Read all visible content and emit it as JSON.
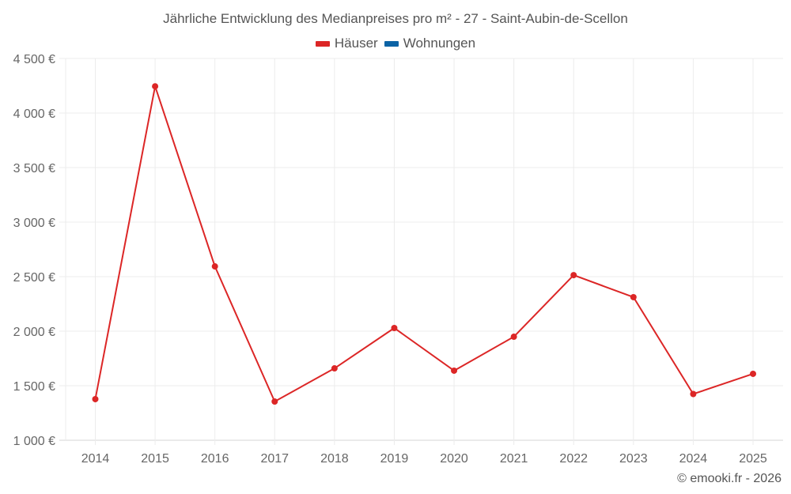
{
  "chart": {
    "title": "Jährliche Entwicklung des Medianpreises pro m² - 27 - Saint-Aubin-de-Scellon",
    "credit": "© emooki.fr - 2026",
    "legend": [
      {
        "label": "Häuser",
        "color": "#dc2626"
      },
      {
        "label": "Wohnungen",
        "color": "#0b63a5"
      }
    ]
  },
  "chart_data": {
    "type": "line",
    "title": "Jährliche Entwicklung des Medianpreises pro m² - 27 - Saint-Aubin-de-Scellon",
    "xlabel": "",
    "ylabel": "",
    "categories": [
      "2014",
      "2015",
      "2016",
      "2017",
      "2018",
      "2019",
      "2020",
      "2021",
      "2022",
      "2023",
      "2024",
      "2025"
    ],
    "series": [
      {
        "name": "Häuser",
        "color": "#dc2626",
        "values": [
          1377,
          4245,
          2594,
          1355,
          1659,
          2029,
          1638,
          1949,
          2514,
          2312,
          1424,
          1609
        ]
      },
      {
        "name": "Wohnungen",
        "color": "#0b63a5",
        "values": []
      }
    ],
    "ylim": [
      1000,
      4500
    ],
    "yticks": [
      1000,
      1500,
      2000,
      2500,
      3000,
      3500,
      4000,
      4500
    ],
    "ytick_labels": [
      "1 000 €",
      "1 500 €",
      "2 000 €",
      "2 500 €",
      "3 000 €",
      "3 500 €",
      "4 000 €",
      "4 500 €"
    ],
    "grid": true,
    "legend_position": "top"
  }
}
